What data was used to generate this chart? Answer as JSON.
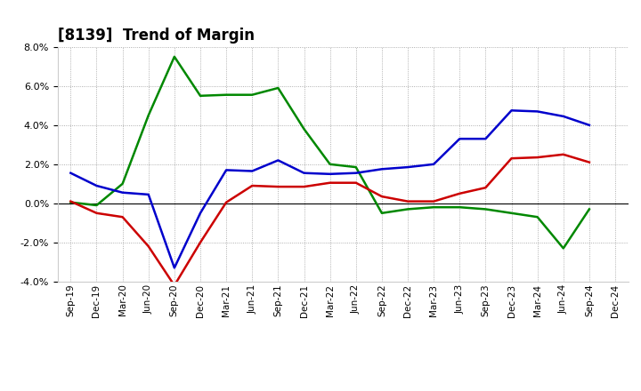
{
  "title": "[8139]  Trend of Margin",
  "x_labels": [
    "Sep-19",
    "Dec-19",
    "Mar-20",
    "Jun-20",
    "Sep-20",
    "Dec-20",
    "Mar-21",
    "Jun-21",
    "Sep-21",
    "Dec-21",
    "Mar-22",
    "Jun-22",
    "Sep-22",
    "Dec-22",
    "Mar-23",
    "Jun-23",
    "Sep-23",
    "Dec-23",
    "Mar-24",
    "Jun-24",
    "Sep-24",
    "Dec-24"
  ],
  "ordinary_income": [
    1.55,
    0.9,
    0.55,
    0.45,
    -3.3,
    -0.5,
    1.7,
    1.65,
    2.2,
    1.55,
    1.5,
    1.55,
    1.75,
    1.85,
    2.0,
    3.3,
    3.3,
    4.75,
    4.7,
    4.45,
    4.0,
    null
  ],
  "net_income": [
    0.1,
    -0.5,
    -0.7,
    -2.2,
    -4.2,
    -2.0,
    0.05,
    0.9,
    0.85,
    0.85,
    1.05,
    1.05,
    0.35,
    0.1,
    0.1,
    0.5,
    0.8,
    2.3,
    2.35,
    2.5,
    2.1,
    null
  ],
  "operating_cashflow": [
    0.05,
    -0.1,
    1.0,
    4.5,
    7.5,
    5.5,
    5.55,
    5.55,
    5.9,
    3.8,
    2.0,
    1.85,
    -0.5,
    -0.3,
    -0.2,
    -0.2,
    -0.3,
    -0.5,
    -0.7,
    -2.3,
    -0.3,
    null
  ],
  "ylim": [
    -4.0,
    8.0
  ],
  "yticks": [
    -4.0,
    -2.0,
    0.0,
    2.0,
    4.0,
    6.0,
    8.0
  ],
  "colors": {
    "ordinary_income": "#0000cc",
    "net_income": "#cc0000",
    "operating_cashflow": "#008800"
  },
  "background_color": "#ffffff",
  "grid_color": "#999999"
}
